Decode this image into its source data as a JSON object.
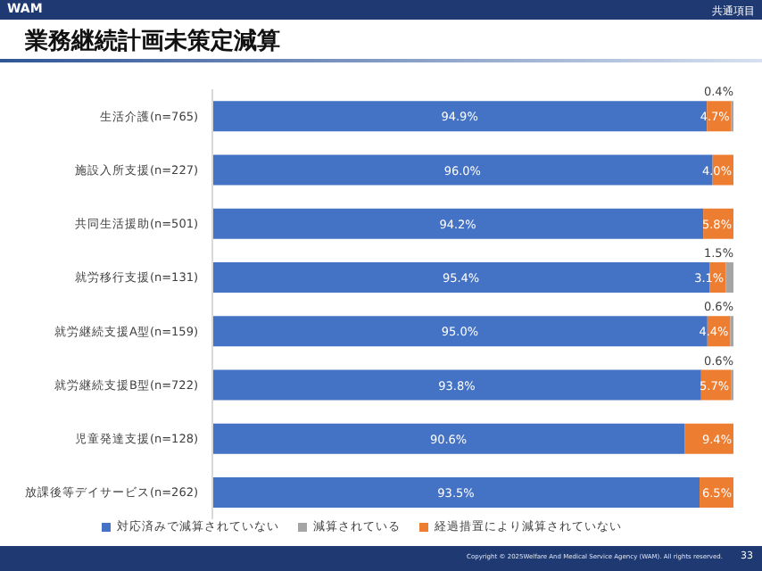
{
  "chart_data": {
    "type": "bar",
    "orientation": "horizontal",
    "stacked": true,
    "title": "業務継続計画未策定減算",
    "annotations": [
      "WAM",
      "共通項目",
      "Copyright © 2025Welfare And Medical Service Agency (WAM). All rights reserved.",
      "33"
    ],
    "categories": [
      "生活介護(n=765)",
      "施設入所支援(n=227)",
      "共同生活援助(n=501)",
      "就労移行支援(n=131)",
      "就労継続支援A型(n=159)",
      "就労継続支援B型(n=722)",
      "児童発達支援(n=128)",
      "放課後等デイサービス(n=262)"
    ],
    "series": [
      {
        "name": "対応済みで減算されていない",
        "color": "#4472c4",
        "values": [
          94.9,
          96.0,
          94.2,
          95.4,
          95.0,
          93.8,
          90.6,
          93.5
        ],
        "value_labels": [
          "94.9%",
          "96.0%",
          "94.2%",
          "95.4%",
          "95.0%",
          "93.8%",
          "90.6%",
          "93.5%"
        ]
      },
      {
        "name": "経過措置により減算されていない",
        "color": "#ed7d31",
        "values": [
          4.7,
          4.0,
          5.8,
          3.1,
          4.4,
          5.7,
          9.4,
          6.5
        ],
        "value_labels": [
          "4.7%",
          "4.0%",
          "5.8%",
          "3.1%",
          "4.4%",
          "5.7%",
          "9.4%",
          "6.5%"
        ]
      },
      {
        "name": "減算されている",
        "color": "#a5a5a5",
        "values": [
          0.4,
          0,
          0,
          1.5,
          0.6,
          0.6,
          0,
          0
        ],
        "value_labels": [
          "0.4%",
          null,
          null,
          "1.5%",
          "0.6%",
          "0.6%",
          null,
          null
        ]
      }
    ],
    "xlim": [
      0,
      100
    ],
    "tick_labels": "y",
    "legend": "bottom",
    "grid": false
  }
}
